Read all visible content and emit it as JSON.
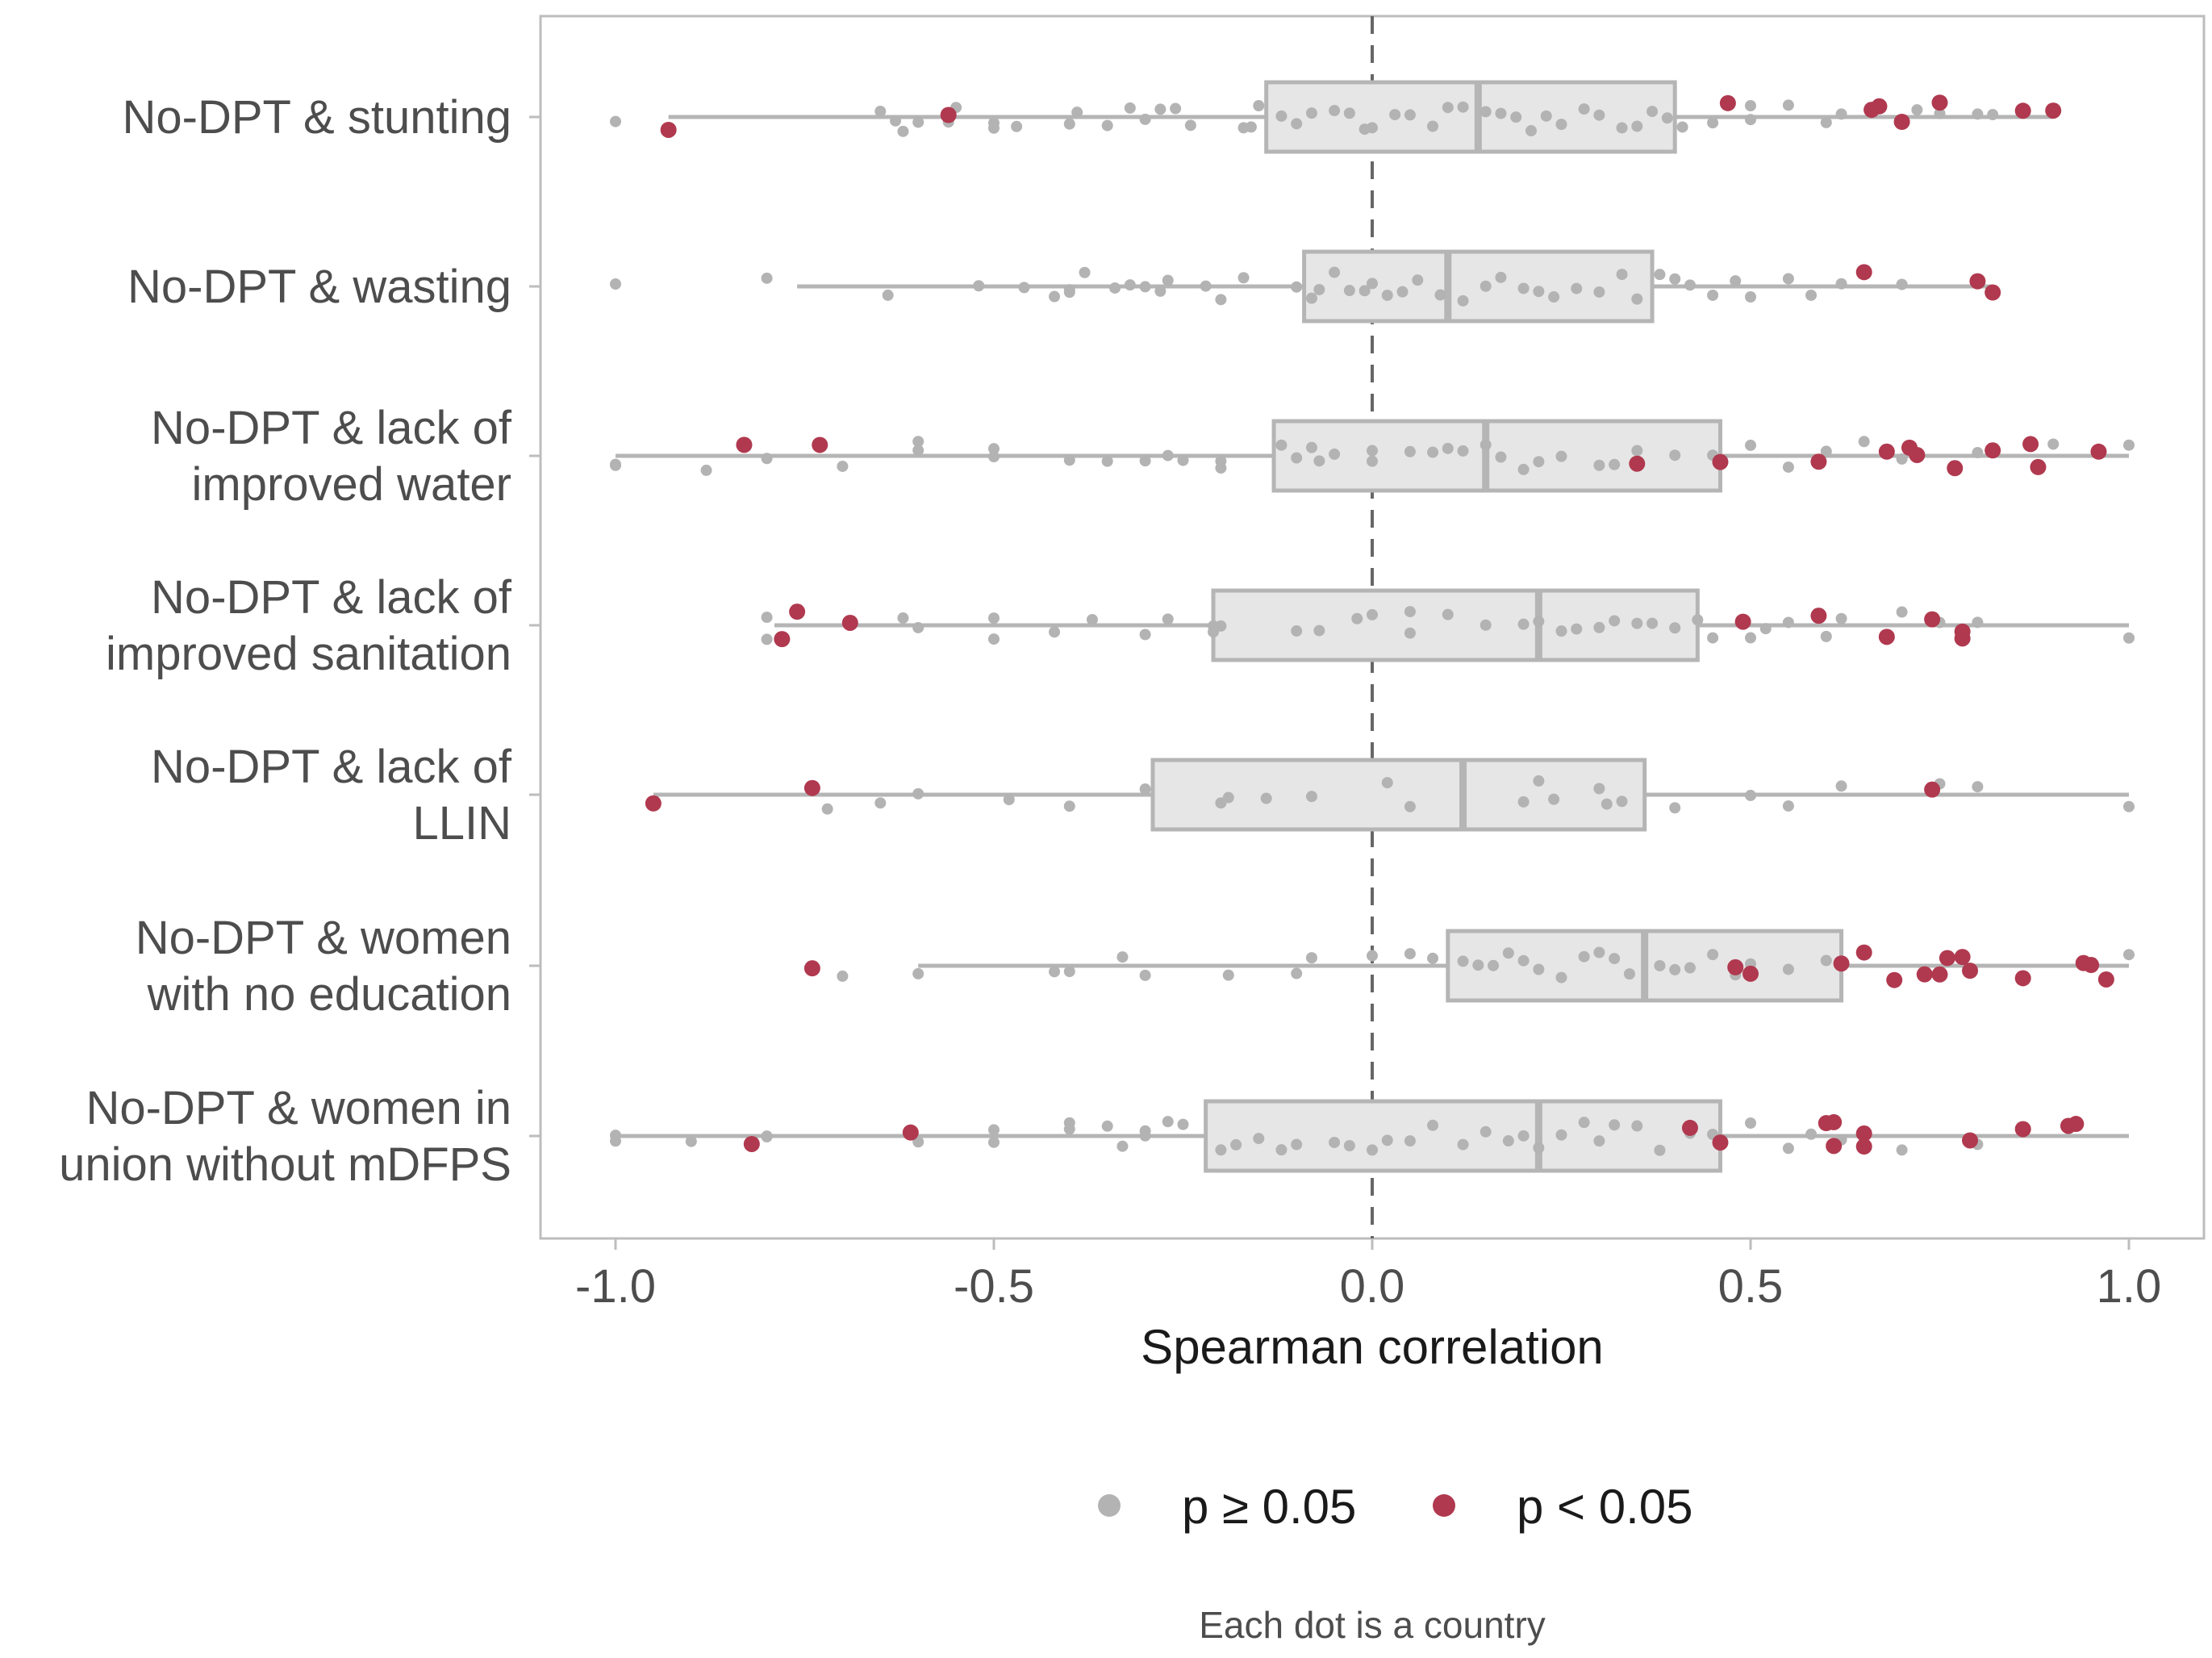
{
  "chart_data": {
    "type": "boxplot-jitter",
    "xlabel": "Spearman correlation",
    "xlim": [
      -1.1,
      1.1
    ],
    "x_ticks": [
      -1.0,
      -0.5,
      0.0,
      0.5,
      1.0
    ],
    "x_tick_labels": [
      "-1.0",
      "-0.5",
      "0.0",
      "0.5",
      "1.0"
    ],
    "reference_line_x": 0.0,
    "legend": {
      "position": "bottom",
      "entries": [
        {
          "key": "ns",
          "label": "p ≥ 0.05",
          "color": "#b3b3b3"
        },
        {
          "key": "sig",
          "label": "p < 0.05",
          "color": "#b0394f"
        }
      ]
    },
    "caption": "Each dot is a country",
    "colors": {
      "box_fill": "#e6e6e6",
      "box_stroke": "#b5b5b5",
      "ns": "#b3b3b3",
      "sig": "#b0394f",
      "zero_line": "#666666",
      "panel_border": "#bdbdbd"
    },
    "categories": [
      {
        "label_lines": [
          "No-DPT & stunting"
        ],
        "box": {
          "min": -0.93,
          "q1": -0.14,
          "median": 0.14,
          "q3": 0.4,
          "max": 0.9
        },
        "ns": [
          -1.0,
          -0.65,
          -0.63,
          -0.62,
          -0.6,
          -0.56,
          -0.55,
          -0.5,
          -0.5,
          -0.47,
          -0.4,
          -0.39,
          -0.35,
          -0.32,
          -0.3,
          -0.28,
          -0.26,
          -0.24,
          -0.17,
          -0.16,
          -0.15,
          -0.12,
          -0.1,
          -0.08,
          -0.05,
          -0.03,
          -0.01,
          0.0,
          0.03,
          0.05,
          0.08,
          0.1,
          0.12,
          0.15,
          0.17,
          0.19,
          0.21,
          0.23,
          0.25,
          0.28,
          0.3,
          0.33,
          0.35,
          0.37,
          0.39,
          0.41,
          0.45,
          0.5,
          0.5,
          0.55,
          0.6,
          0.62,
          0.7,
          0.72,
          0.75,
          0.8,
          0.82
        ],
        "sig": [
          -0.93,
          -0.56,
          0.47,
          0.66,
          0.67,
          0.7,
          0.75,
          0.86,
          0.9
        ]
      },
      {
        "label_lines": [
          "No-DPT & wasting"
        ],
        "box": {
          "min": -0.76,
          "q1": -0.09,
          "median": 0.1,
          "q3": 0.37,
          "max": 0.82
        },
        "ns": [
          -1.0,
          -0.8,
          -0.64,
          -0.52,
          -0.46,
          -0.42,
          -0.4,
          -0.4,
          -0.38,
          -0.34,
          -0.32,
          -0.3,
          -0.28,
          -0.27,
          -0.22,
          -0.2,
          -0.17,
          -0.1,
          -0.08,
          -0.07,
          -0.05,
          -0.03,
          -0.01,
          0.0,
          0.02,
          0.04,
          0.06,
          0.09,
          0.12,
          0.15,
          0.17,
          0.2,
          0.22,
          0.24,
          0.27,
          0.3,
          0.33,
          0.35,
          0.38,
          0.4,
          0.42,
          0.45,
          0.48,
          0.5,
          0.55,
          0.58,
          0.62,
          0.7
        ],
        "sig": [
          0.65,
          0.8,
          0.82
        ]
      },
      {
        "label_lines": [
          "No-DPT & lack of",
          "improved water"
        ],
        "box": {
          "min": -1.0,
          "q1": -0.13,
          "median": 0.15,
          "q3": 0.46,
          "max": 1.0
        },
        "ns": [
          -1.0,
          -1.0,
          -0.88,
          -0.8,
          -0.7,
          -0.6,
          -0.6,
          -0.5,
          -0.5,
          -0.4,
          -0.35,
          -0.3,
          -0.27,
          -0.25,
          -0.2,
          -0.2,
          -0.12,
          -0.1,
          -0.08,
          -0.07,
          -0.05,
          0.0,
          0.0,
          0.05,
          0.08,
          0.1,
          0.12,
          0.15,
          0.17,
          0.2,
          0.22,
          0.25,
          0.3,
          0.32,
          0.35,
          0.4,
          0.45,
          0.5,
          0.55,
          0.6,
          0.65,
          0.7,
          0.8,
          0.9,
          1.0
        ],
        "sig": [
          -0.83,
          -0.73,
          0.35,
          0.46,
          0.59,
          0.68,
          0.71,
          0.72,
          0.77,
          0.82,
          0.87,
          0.88,
          0.96
        ]
      },
      {
        "label_lines": [
          "No-DPT & lack of",
          "improved sanitation"
        ],
        "box": {
          "min": -0.79,
          "q1": -0.21,
          "median": 0.22,
          "q3": 0.43,
          "max": 1.0
        },
        "ns": [
          -0.8,
          -0.8,
          -0.62,
          -0.6,
          -0.5,
          -0.5,
          -0.42,
          -0.37,
          -0.3,
          -0.27,
          -0.21,
          -0.21,
          -0.2,
          -0.1,
          -0.07,
          -0.02,
          0.0,
          0.05,
          0.05,
          0.1,
          0.15,
          0.2,
          0.22,
          0.25,
          0.27,
          0.3,
          0.32,
          0.35,
          0.37,
          0.4,
          0.43,
          0.45,
          0.5,
          0.52,
          0.55,
          0.6,
          0.62,
          0.7,
          0.75,
          0.8,
          1.0
        ],
        "sig": [
          -0.78,
          -0.76,
          -0.69,
          0.49,
          0.59,
          0.68,
          0.74,
          0.78,
          0.78
        ]
      },
      {
        "label_lines": [
          "No-DPT & lack of",
          "LLIN"
        ],
        "box": {
          "min": -0.95,
          "q1": -0.29,
          "median": 0.12,
          "q3": 0.36,
          "max": 1.0
        },
        "ns": [
          -0.72,
          -0.65,
          -0.6,
          -0.48,
          -0.4,
          -0.3,
          -0.2,
          -0.19,
          -0.14,
          -0.08,
          0.02,
          0.05,
          0.2,
          0.22,
          0.24,
          0.3,
          0.31,
          0.33,
          0.4,
          0.5,
          0.55,
          0.62,
          0.75,
          0.8,
          1.0
        ],
        "sig": [
          -0.95,
          -0.74,
          0.74
        ]
      },
      {
        "label_lines": [
          "No-DPT & women",
          "with no education"
        ],
        "box": {
          "min": -0.6,
          "q1": 0.1,
          "median": 0.36,
          "q3": 0.62,
          "max": 1.0
        },
        "ns": [
          -0.7,
          -0.6,
          -0.4,
          -0.42,
          -0.33,
          -0.3,
          -0.19,
          -0.1,
          -0.08,
          0.0,
          0.05,
          0.08,
          0.12,
          0.14,
          0.16,
          0.18,
          0.2,
          0.22,
          0.25,
          0.28,
          0.3,
          0.32,
          0.34,
          0.38,
          0.4,
          0.42,
          0.45,
          0.48,
          0.5,
          0.5,
          0.55,
          0.6,
          1.0
        ],
        "sig": [
          -0.74,
          0.48,
          0.5,
          0.62,
          0.65,
          0.69,
          0.73,
          0.75,
          0.76,
          0.78,
          0.79,
          0.86,
          0.94,
          0.95,
          0.97
        ]
      },
      {
        "label_lines": [
          "No-DPT & women in",
          "union without mDFPS"
        ],
        "box": {
          "min": -1.0,
          "q1": -0.22,
          "median": 0.22,
          "q3": 0.46,
          "max": 1.0
        },
        "ns": [
          -1.0,
          -1.0,
          -0.9,
          -0.8,
          -0.8,
          -0.6,
          -0.5,
          -0.5,
          -0.4,
          -0.4,
          -0.35,
          -0.33,
          -0.3,
          -0.3,
          -0.27,
          -0.25,
          -0.2,
          -0.18,
          -0.15,
          -0.12,
          -0.1,
          -0.05,
          -0.03,
          0.0,
          0.02,
          0.05,
          0.08,
          0.12,
          0.15,
          0.18,
          0.2,
          0.22,
          0.25,
          0.28,
          0.3,
          0.32,
          0.35,
          0.38,
          0.42,
          0.45,
          0.5,
          0.55,
          0.58,
          0.62,
          0.7,
          0.8
        ],
        "sig": [
          -0.82,
          -0.61,
          0.42,
          0.46,
          0.6,
          0.61,
          0.61,
          0.65,
          0.65,
          0.79,
          0.86,
          0.92,
          0.93
        ]
      }
    ]
  }
}
